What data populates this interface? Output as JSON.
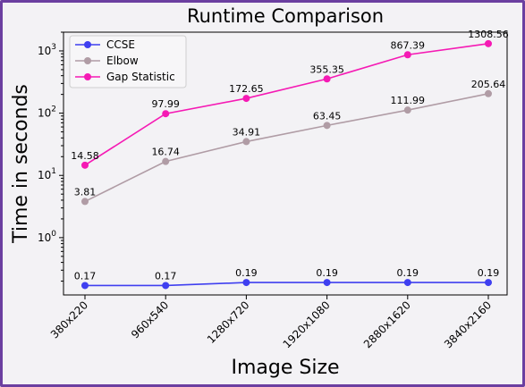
{
  "chart_data": {
    "type": "line",
    "title": "Runtime Comparison",
    "xlabel": "Image Size",
    "ylabel": "Time in seconds",
    "yscale": "log",
    "ylim": [
      0.12,
      2000
    ],
    "y_ticks": [
      {
        "value": 1,
        "base": "10",
        "exp": "0"
      },
      {
        "value": 10,
        "base": "10",
        "exp": "1"
      },
      {
        "value": 100,
        "base": "10",
        "exp": "2"
      },
      {
        "value": 1000,
        "base": "10",
        "exp": "3"
      }
    ],
    "categories": [
      "380x220",
      "960x540",
      "1280x720",
      "1920x1080",
      "2880x1620",
      "3840x2160"
    ],
    "legend_position": "top-left",
    "grid": false,
    "series": [
      {
        "name": "CCSE",
        "color": "#3f3ff0",
        "values": [
          0.17,
          0.17,
          0.19,
          0.19,
          0.19,
          0.19
        ],
        "labels": [
          "0.17",
          "0.17",
          "0.19",
          "0.19",
          "0.19",
          "0.19"
        ]
      },
      {
        "name": "Elbow",
        "color": "#b09ca5",
        "values": [
          3.81,
          16.74,
          34.91,
          63.45,
          111.99,
          205.64
        ],
        "labels": [
          "3.81",
          "16.74",
          "34.91",
          "63.45",
          "111.99",
          "205.64"
        ]
      },
      {
        "name": "Gap Statistic",
        "color": "#f51ab4",
        "values": [
          14.58,
          97.99,
          172.65,
          355.35,
          867.39,
          1308.56
        ],
        "labels": [
          "14.58",
          "97.99",
          "172.65",
          "355.35",
          "867.39",
          "1308.56"
        ]
      }
    ]
  }
}
